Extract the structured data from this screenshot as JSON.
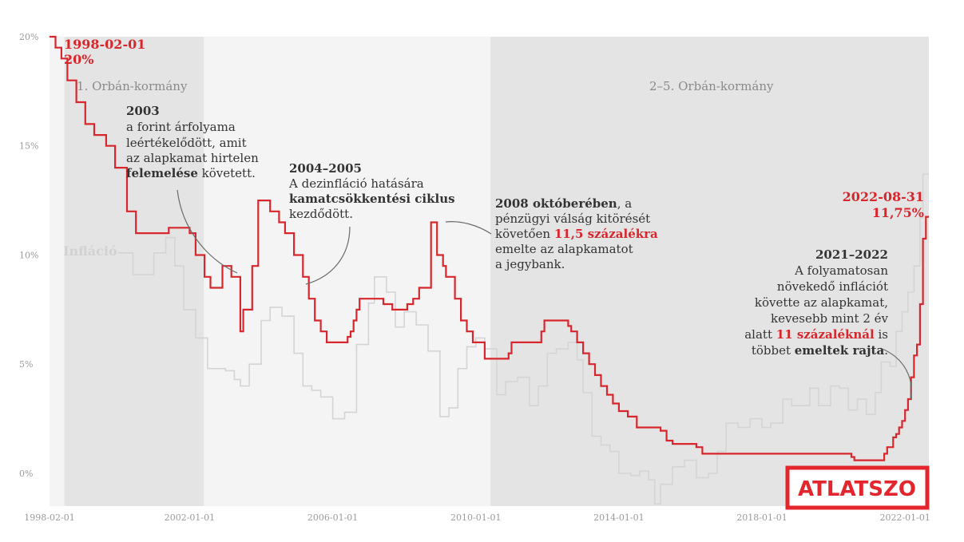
{
  "chart_data": {
    "type": "line",
    "title": "",
    "xlabel": "",
    "ylabel": "",
    "x_range": [
      "1998-02-01",
      "2022-08-31"
    ],
    "ylim": [
      -1.5,
      20
    ],
    "y_ticks": [
      {
        "value": 0,
        "label": "0%"
      },
      {
        "value": 5,
        "label": "5%"
      },
      {
        "value": 10,
        "label": "10%"
      },
      {
        "value": 15,
        "label": "15%"
      },
      {
        "value": 20,
        "label": "20%"
      }
    ],
    "x_ticks": [
      {
        "date": "1998-02-01",
        "label": "1998-02-01"
      },
      {
        "date": "2002-01-01",
        "label": "2002-01-01"
      },
      {
        "date": "2006-01-01",
        "label": "2006-01-01"
      },
      {
        "date": "2010-01-01",
        "label": "2010-01-01"
      },
      {
        "date": "2014-01-01",
        "label": "2014-01-01"
      },
      {
        "date": "2018-01-01",
        "label": "2018-01-01"
      },
      {
        "date": "2022-01-01",
        "label": "2022-01-01"
      }
    ],
    "grid": false,
    "bands": [
      {
        "label": "1. Orbán-kormány",
        "start": "1998-07-01",
        "end": "2002-05-25"
      },
      {
        "label": "2–5. Orbán-kormány",
        "start": "2010-05-29",
        "end": "2022-08-31"
      }
    ],
    "series": [
      {
        "name": "",
        "color": "#d7262c",
        "step": true,
        "points": [
          [
            "1998-02-01",
            20
          ],
          [
            "1998-04-01",
            19.5
          ],
          [
            "1998-06-01",
            19
          ],
          [
            "1998-08-01",
            18
          ],
          [
            "1998-11-01",
            17
          ],
          [
            "1999-02-01",
            16
          ],
          [
            "1999-05-01",
            15.5
          ],
          [
            "1999-09-01",
            15
          ],
          [
            "1999-12-01",
            14
          ],
          [
            "2000-04-01",
            12
          ],
          [
            "2000-07-01",
            11
          ],
          [
            "2001-06-01",
            11.25
          ],
          [
            "2002-01-01",
            11
          ],
          [
            "2002-03-01",
            10
          ],
          [
            "2002-06-01",
            9
          ],
          [
            "2002-08-01",
            8.5
          ],
          [
            "2002-12-01",
            9.5
          ],
          [
            "2003-03-01",
            9
          ],
          [
            "2003-06-01",
            6.5
          ],
          [
            "2003-07-01",
            7.5
          ],
          [
            "2003-10-01",
            9.5
          ],
          [
            "2003-12-01",
            12.5
          ],
          [
            "2004-04-01",
            12
          ],
          [
            "2004-07-01",
            11.5
          ],
          [
            "2004-09-01",
            11
          ],
          [
            "2004-12-01",
            10
          ],
          [
            "2005-03-01",
            9
          ],
          [
            "2005-05-01",
            8
          ],
          [
            "2005-07-01",
            7
          ],
          [
            "2005-09-01",
            6.5
          ],
          [
            "2005-11-01",
            6
          ],
          [
            "2006-06-01",
            6.25
          ],
          [
            "2006-07-01",
            6.5
          ],
          [
            "2006-08-01",
            7
          ],
          [
            "2006-09-01",
            7.5
          ],
          [
            "2006-10-01",
            8
          ],
          [
            "2007-06-01",
            7.75
          ],
          [
            "2007-09-01",
            7.5
          ],
          [
            "2008-02-01",
            7.75
          ],
          [
            "2008-04-01",
            8
          ],
          [
            "2008-06-01",
            8.5
          ],
          [
            "2008-10-01",
            11.5
          ],
          [
            "2008-12-01",
            10
          ],
          [
            "2009-02-01",
            9.5
          ],
          [
            "2009-03-01",
            9
          ],
          [
            "2009-06-01",
            8
          ],
          [
            "2009-08-01",
            7
          ],
          [
            "2009-10-01",
            6.5
          ],
          [
            "2009-12-01",
            6
          ],
          [
            "2010-04-01",
            5.25
          ],
          [
            "2010-12-01",
            5.5
          ],
          [
            "2011-01-01",
            6
          ],
          [
            "2011-11-01",
            6.5
          ],
          [
            "2011-12-01",
            7
          ],
          [
            "2012-08-01",
            6.75
          ],
          [
            "2012-09-01",
            6.5
          ],
          [
            "2012-11-01",
            6
          ],
          [
            "2013-01-01",
            5.5
          ],
          [
            "2013-03-01",
            5
          ],
          [
            "2013-05-01",
            4.5
          ],
          [
            "2013-07-01",
            4
          ],
          [
            "2013-09-01",
            3.6
          ],
          [
            "2013-11-01",
            3.2
          ],
          [
            "2014-01-01",
            2.85
          ],
          [
            "2014-04-01",
            2.6
          ],
          [
            "2014-07-01",
            2.1
          ],
          [
            "2015-03-01",
            1.95
          ],
          [
            "2015-05-01",
            1.5
          ],
          [
            "2015-07-01",
            1.35
          ],
          [
            "2016-03-01",
            1.2
          ],
          [
            "2016-05-01",
            0.9
          ],
          [
            "2020-07-01",
            0.75
          ],
          [
            "2020-08-01",
            0.6
          ],
          [
            "2021-06-01",
            0.9
          ],
          [
            "2021-07-01",
            1.2
          ],
          [
            "2021-09-01",
            1.65
          ],
          [
            "2021-10-01",
            1.8
          ],
          [
            "2021-11-01",
            2.1
          ],
          [
            "2021-12-01",
            2.4
          ],
          [
            "2022-01-01",
            2.9
          ],
          [
            "2022-02-01",
            3.4
          ],
          [
            "2022-03-01",
            4.4
          ],
          [
            "2022-04-01",
            5.4
          ],
          [
            "2022-05-01",
            5.9
          ],
          [
            "2022-06-01",
            7.75
          ],
          [
            "2022-07-01",
            10.75
          ],
          [
            "2022-08-01",
            11.75
          ],
          [
            "2022-08-31",
            11.75
          ]
        ]
      },
      {
        "name": "Infláció",
        "color": "#d4d4d4",
        "step": true,
        "points": [
          [
            "2000-01-01",
            10.1
          ],
          [
            "2000-06-01",
            9.1
          ],
          [
            "2001-01-01",
            10.1
          ],
          [
            "2001-05-01",
            10.8
          ],
          [
            "2001-08-01",
            9.5
          ],
          [
            "2001-11-01",
            7.5
          ],
          [
            "2002-03-01",
            6.2
          ],
          [
            "2002-07-01",
            4.8
          ],
          [
            "2003-01-01",
            4.7
          ],
          [
            "2003-04-01",
            4.3
          ],
          [
            "2003-06-01",
            4.0
          ],
          [
            "2003-09-01",
            5.0
          ],
          [
            "2004-01-01",
            7.0
          ],
          [
            "2004-04-01",
            7.6
          ],
          [
            "2004-08-01",
            7.2
          ],
          [
            "2004-12-01",
            5.5
          ],
          [
            "2005-03-01",
            4.0
          ],
          [
            "2005-06-01",
            3.8
          ],
          [
            "2005-09-01",
            3.5
          ],
          [
            "2006-01-01",
            2.5
          ],
          [
            "2006-05-01",
            2.8
          ],
          [
            "2006-09-01",
            5.9
          ],
          [
            "2007-01-01",
            7.8
          ],
          [
            "2007-03-01",
            9.0
          ],
          [
            "2007-07-01",
            8.3
          ],
          [
            "2007-10-01",
            6.7
          ],
          [
            "2008-01-01",
            7.4
          ],
          [
            "2008-05-01",
            6.8
          ],
          [
            "2008-09-01",
            5.6
          ],
          [
            "2009-01-01",
            2.6
          ],
          [
            "2009-04-01",
            3.0
          ],
          [
            "2009-07-01",
            4.8
          ],
          [
            "2009-10-01",
            5.8
          ],
          [
            "2010-01-01",
            6.2
          ],
          [
            "2010-04-01",
            5.7
          ],
          [
            "2010-08-01",
            3.6
          ],
          [
            "2010-11-01",
            4.2
          ],
          [
            "2011-03-01",
            4.4
          ],
          [
            "2011-07-01",
            3.1
          ],
          [
            "2011-10-01",
            4.0
          ],
          [
            "2012-01-01",
            5.5
          ],
          [
            "2012-04-01",
            5.7
          ],
          [
            "2012-08-01",
            6.0
          ],
          [
            "2012-11-01",
            5.2
          ],
          [
            "2013-01-01",
            3.7
          ],
          [
            "2013-04-01",
            1.7
          ],
          [
            "2013-07-01",
            1.3
          ],
          [
            "2013-10-01",
            1.0
          ],
          [
            "2014-01-01",
            0.0
          ],
          [
            "2014-05-01",
            -0.1
          ],
          [
            "2014-08-01",
            0.1
          ],
          [
            "2014-11-01",
            -0.3
          ],
          [
            "2015-01-01",
            -1.4
          ],
          [
            "2015-03-01",
            -0.5
          ],
          [
            "2015-07-01",
            0.3
          ],
          [
            "2015-11-01",
            0.6
          ],
          [
            "2016-03-01",
            -0.2
          ],
          [
            "2016-07-01",
            0.0
          ],
          [
            "2016-10-01",
            1.0
          ],
          [
            "2017-01-01",
            2.3
          ],
          [
            "2017-05-01",
            2.1
          ],
          [
            "2017-09-01",
            2.5
          ],
          [
            "2018-01-01",
            2.1
          ],
          [
            "2018-04-01",
            2.3
          ],
          [
            "2018-08-01",
            3.4
          ],
          [
            "2018-11-01",
            3.1
          ],
          [
            "2019-02-01",
            3.1
          ],
          [
            "2019-05-01",
            3.9
          ],
          [
            "2019-08-01",
            3.1
          ],
          [
            "2019-12-01",
            4.0
          ],
          [
            "2020-03-01",
            3.9
          ],
          [
            "2020-06-01",
            2.9
          ],
          [
            "2020-09-01",
            3.4
          ],
          [
            "2020-12-01",
            2.7
          ],
          [
            "2021-03-01",
            3.7
          ],
          [
            "2021-05-01",
            5.1
          ],
          [
            "2021-08-01",
            4.9
          ],
          [
            "2021-10-01",
            6.5
          ],
          [
            "2021-12-01",
            7.4
          ],
          [
            "2022-02-01",
            8.3
          ],
          [
            "2022-04-01",
            9.5
          ],
          [
            "2022-06-01",
            11.7
          ],
          [
            "2022-07-01",
            13.7
          ],
          [
            "2022-08-31",
            13.7
          ]
        ]
      }
    ],
    "annotations": {
      "start_label": {
        "date": "1998-02-01",
        "value": "20%"
      },
      "end_label": {
        "date": "2022-08-31",
        "value": "11,75%"
      },
      "a2003": {
        "head": "2003",
        "lines": [
          "a forint árfolyama",
          "leértékelődött, amit",
          "az alapkamat hirtelen"
        ],
        "bold_part": "felemelése",
        "rest": " követett."
      },
      "a2004": {
        "head": "2004–2005",
        "line1": "A dezinfláció hatására",
        "bold_line": "kamatcsökkentési ciklus",
        "line3": "kezdődött."
      },
      "a2008": {
        "head_bold": "2008 októberében",
        "head_rest": ", a",
        "line2": "pénzügyi válság kitörését",
        "line3_pre": "követően ",
        "line3_red": "11,5 százalékra",
        "line4": "emelte az alapkamatot",
        "line5": "a jegybank."
      },
      "a2021": {
        "head": "2021–2022",
        "line1": "A folyamatosan",
        "line2": "növekedő inflációt",
        "line3": "követte az alapkamat,",
        "line4": "kevesebb mint 2 év",
        "line5_pre": "alatt ",
        "line5_red": "11 százaléknál",
        "line5_post": " is",
        "line6_pre": "többet ",
        "line6_bold": "emeltek rajta",
        "line6_post": "."
      }
    }
  },
  "logo": {
    "text": "ATLATSZO",
    "color": "#e3262d"
  }
}
